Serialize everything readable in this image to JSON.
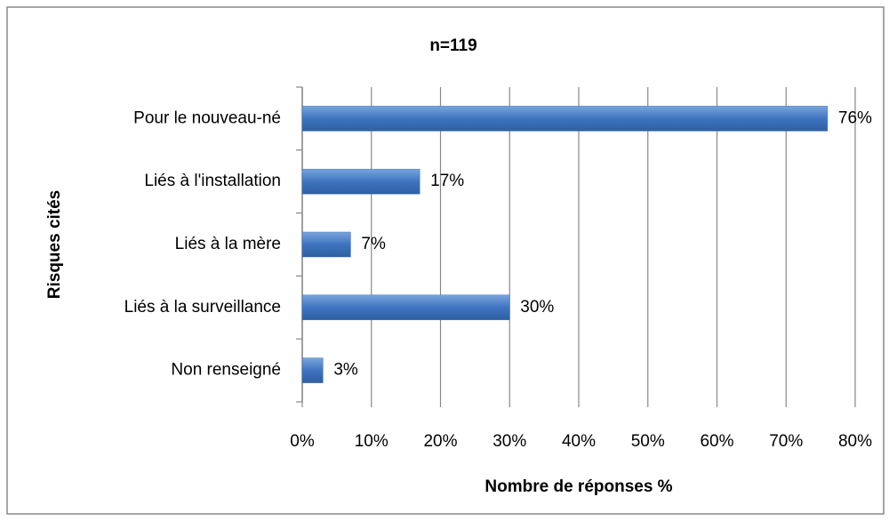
{
  "chart_data": {
    "type": "hbar",
    "title": "n=119",
    "xlabel": "Nombre de réponses %",
    "ylabel": "Risques cités",
    "categories": [
      "Pour le nouveau-né",
      "Liés à l'installation",
      "Liés à la mère",
      "Liés à la surveillance",
      "Non renseigné"
    ],
    "values": [
      76,
      17,
      7,
      30,
      3
    ],
    "value_labels": [
      "76%",
      "17%",
      "7%",
      "30%",
      "3%"
    ],
    "color": "#3e74c0",
    "xlim": [
      0,
      80
    ],
    "xticks": [
      {
        "value": 0,
        "label": "0%"
      },
      {
        "value": 10,
        "label": "10%"
      },
      {
        "value": 20,
        "label": "20%"
      },
      {
        "value": 30,
        "label": "30%"
      },
      {
        "value": 40,
        "label": "40%"
      },
      {
        "value": 50,
        "label": "50%"
      },
      {
        "value": 60,
        "label": "60%"
      },
      {
        "value": 70,
        "label": "70%"
      },
      {
        "value": 80,
        "label": "80%"
      }
    ],
    "grid": true
  }
}
